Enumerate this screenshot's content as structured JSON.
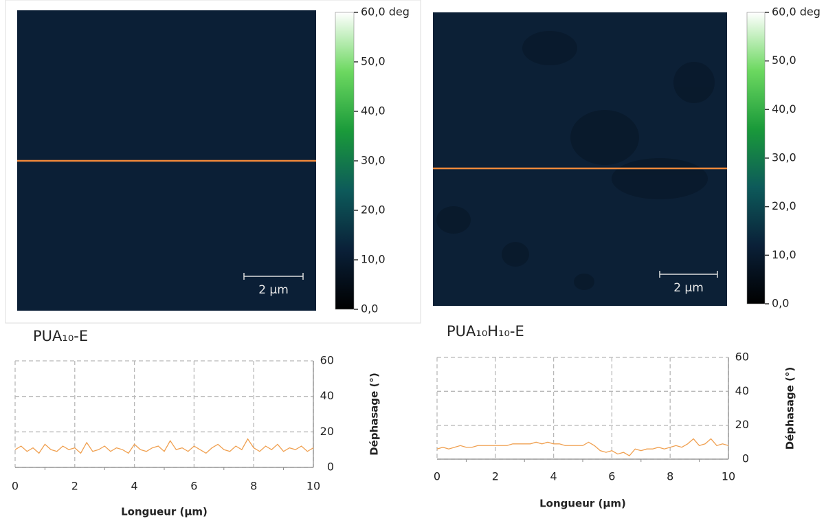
{
  "chart_data": [
    {
      "type": "line",
      "title": "PUA₁₀-E",
      "image": {
        "scale_bar": "2 µm",
        "colorbar": {
          "ylim": [
            0,
            60
          ],
          "ticks": [
            {
              "value": 0,
              "label": "0,0"
            },
            {
              "value": 10,
              "label": "10,0"
            },
            {
              "value": 20,
              "label": "20,0"
            },
            {
              "value": 30,
              "label": "30,0"
            },
            {
              "value": 40,
              "label": "40,0"
            },
            {
              "value": 50,
              "label": "50,0"
            },
            {
              "value": 60,
              "label": "60,0 deg"
            }
          ]
        }
      },
      "xlabel": "Longueur (µm)",
      "ylabel": "Déphasage (°)",
      "xlim": [
        0,
        10
      ],
      "xticks": [
        0,
        2,
        4,
        6,
        8,
        10
      ],
      "ylim": [
        0,
        60
      ],
      "yticks": [
        0,
        20,
        40,
        60
      ],
      "grid": true,
      "x": [
        0,
        0.2,
        0.4,
        0.6,
        0.8,
        1,
        1.2,
        1.4,
        1.6,
        1.8,
        2,
        2.2,
        2.4,
        2.6,
        2.8,
        3,
        3.2,
        3.4,
        3.6,
        3.8,
        4,
        4.2,
        4.4,
        4.6,
        4.8,
        5,
        5.2,
        5.4,
        5.6,
        5.8,
        6,
        6.2,
        6.4,
        6.6,
        6.8,
        7,
        7.2,
        7.4,
        7.6,
        7.8,
        8,
        8.2,
        8.4,
        8.6,
        8.8,
        9,
        9.2,
        9.4,
        9.6,
        9.8,
        10
      ],
      "series": [
        {
          "color": "#f0a050",
          "values": [
            10,
            12,
            9,
            11,
            8,
            13,
            10,
            9,
            12,
            10,
            11,
            8,
            14,
            9,
            10,
            12,
            9,
            11,
            10,
            8,
            13,
            10,
            9,
            11,
            12,
            9,
            15,
            10,
            11,
            9,
            12,
            10,
            8,
            11,
            13,
            10,
            9,
            12,
            10,
            16,
            11,
            9,
            12,
            10,
            13,
            9,
            11,
            10,
            12,
            9,
            11
          ]
        }
      ]
    },
    {
      "type": "line",
      "title": "PUA₁₀H₁₀-E",
      "image": {
        "scale_bar": "2 µm",
        "colorbar": {
          "ylim": [
            0,
            60
          ],
          "ticks": [
            {
              "value": 0,
              "label": "0,0"
            },
            {
              "value": 10,
              "label": "10,0"
            },
            {
              "value": 20,
              "label": "20,0"
            },
            {
              "value": 30,
              "label": "30,0"
            },
            {
              "value": 40,
              "label": "40,0"
            },
            {
              "value": 50,
              "label": "50,0"
            },
            {
              "value": 60,
              "label": "60,0 deg"
            }
          ]
        }
      },
      "xlabel": "Longueur (µm)",
      "ylabel": "Déphasage (°)",
      "xlim": [
        0,
        10
      ],
      "xticks": [
        0,
        2,
        4,
        6,
        8,
        10
      ],
      "ylim": [
        0,
        60
      ],
      "yticks": [
        0,
        20,
        40,
        60
      ],
      "grid": true,
      "x": [
        0,
        0.2,
        0.4,
        0.6,
        0.8,
        1,
        1.2,
        1.4,
        1.6,
        1.8,
        2,
        2.2,
        2.4,
        2.6,
        2.8,
        3,
        3.2,
        3.4,
        3.6,
        3.8,
        4,
        4.2,
        4.4,
        4.6,
        4.8,
        5,
        5.2,
        5.4,
        5.6,
        5.8,
        6,
        6.2,
        6.4,
        6.6,
        6.8,
        7,
        7.2,
        7.4,
        7.6,
        7.8,
        8,
        8.2,
        8.4,
        8.6,
        8.8,
        9,
        9.2,
        9.4,
        9.6,
        9.8,
        10
      ],
      "series": [
        {
          "color": "#f0a050",
          "values": [
            6,
            7,
            6,
            7,
            8,
            7,
            7,
            8,
            8,
            8,
            8,
            8,
            8,
            9,
            9,
            9,
            9,
            10,
            9,
            10,
            9,
            9,
            8,
            8,
            8,
            8,
            10,
            8,
            5,
            4,
            5,
            3,
            4,
            2,
            6,
            5,
            6,
            6,
            7,
            6,
            7,
            8,
            7,
            9,
            12,
            8,
            9,
            12,
            8,
            9,
            8
          ]
        }
      ]
    }
  ]
}
